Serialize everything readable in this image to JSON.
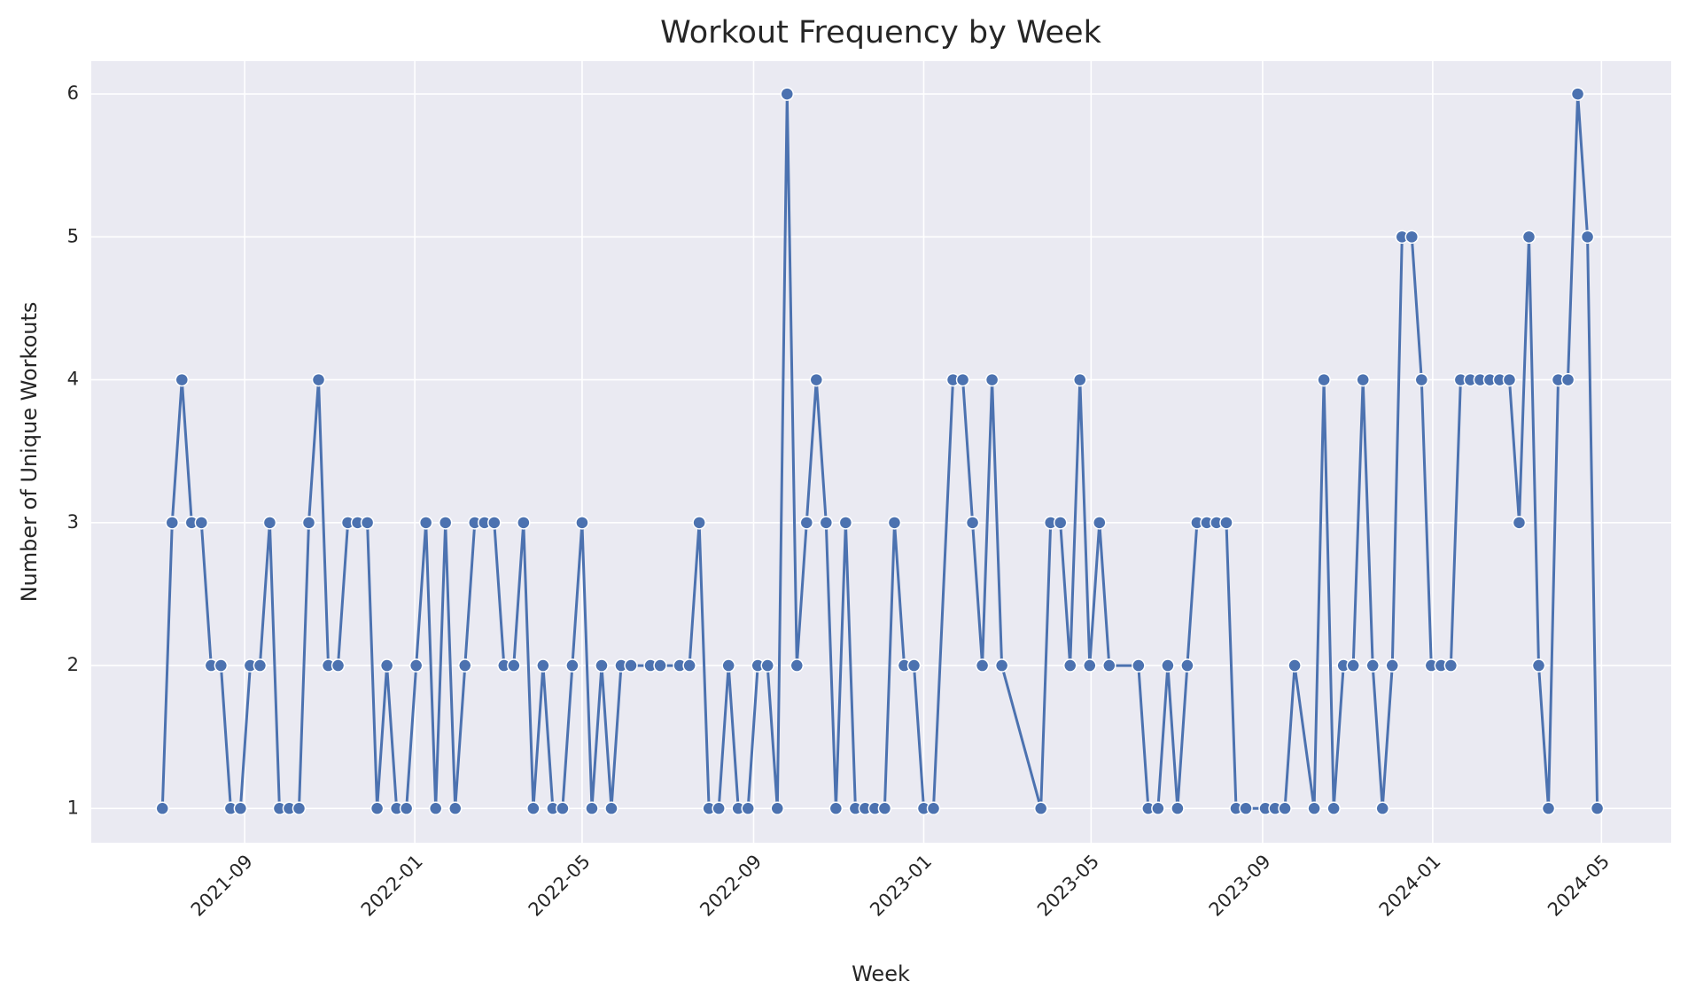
{
  "chart_data": {
    "type": "line",
    "title": "Workout Frequency by Week",
    "x_label": "Week",
    "y_label": "Number of Unique Workouts",
    "color": "#4c72b0",
    "grid": true,
    "xlim": [
      "2021-05-14",
      "2024-06-20"
    ],
    "ylim": [
      0.76,
      6.23
    ],
    "yticks": [
      1,
      2,
      3,
      4,
      5,
      6
    ],
    "xticks": [
      {
        "value": "2021-09-01",
        "label": "2021-09"
      },
      {
        "value": "2022-01-01",
        "label": "2022-01"
      },
      {
        "value": "2022-05-01",
        "label": "2022-05"
      },
      {
        "value": "2022-09-01",
        "label": "2022-09"
      },
      {
        "value": "2023-01-01",
        "label": "2023-01"
      },
      {
        "value": "2023-05-01",
        "label": "2023-05"
      },
      {
        "value": "2023-09-01",
        "label": "2023-09"
      },
      {
        "value": "2024-01-01",
        "label": "2024-01"
      },
      {
        "value": "2024-05-01",
        "label": "2024-05"
      }
    ],
    "x": [
      "2021-07-04",
      "2021-07-11",
      "2021-07-18",
      "2021-07-25",
      "2021-08-01",
      "2021-08-08",
      "2021-08-15",
      "2021-08-22",
      "2021-08-29",
      "2021-09-05",
      "2021-09-12",
      "2021-09-19",
      "2021-09-26",
      "2021-10-03",
      "2021-10-10",
      "2021-10-17",
      "2021-10-24",
      "2021-10-31",
      "2021-11-07",
      "2021-11-14",
      "2021-11-21",
      "2021-11-28",
      "2021-12-05",
      "2021-12-12",
      "2021-12-19",
      "2021-12-26",
      "2022-01-02",
      "2022-01-09",
      "2022-01-16",
      "2022-01-23",
      "2022-01-30",
      "2022-02-06",
      "2022-02-13",
      "2022-02-20",
      "2022-02-27",
      "2022-03-06",
      "2022-03-13",
      "2022-03-20",
      "2022-03-27",
      "2022-04-03",
      "2022-04-10",
      "2022-04-17",
      "2022-04-24",
      "2022-05-01",
      "2022-05-08",
      "2022-05-15",
      "2022-05-22",
      "2022-05-29",
      "2022-06-05",
      "2022-06-19",
      "2022-06-26",
      "2022-07-10",
      "2022-07-17",
      "2022-07-24",
      "2022-07-31",
      "2022-08-07",
      "2022-08-14",
      "2022-08-21",
      "2022-08-28",
      "2022-09-04",
      "2022-09-11",
      "2022-09-18",
      "2022-09-25",
      "2022-10-02",
      "2022-10-09",
      "2022-10-16",
      "2022-10-23",
      "2022-10-30",
      "2022-11-06",
      "2022-11-13",
      "2022-11-20",
      "2022-11-27",
      "2022-12-04",
      "2022-12-11",
      "2022-12-18",
      "2022-12-25",
      "2023-01-01",
      "2023-01-08",
      "2023-01-22",
      "2023-01-29",
      "2023-02-05",
      "2023-02-12",
      "2023-02-19",
      "2023-02-26",
      "2023-03-26",
      "2023-04-02",
      "2023-04-09",
      "2023-04-16",
      "2023-04-23",
      "2023-04-30",
      "2023-05-07",
      "2023-05-14",
      "2023-06-04",
      "2023-06-11",
      "2023-06-18",
      "2023-06-25",
      "2023-07-02",
      "2023-07-09",
      "2023-07-16",
      "2023-07-23",
      "2023-07-30",
      "2023-08-06",
      "2023-08-13",
      "2023-08-20",
      "2023-09-03",
      "2023-09-10",
      "2023-09-17",
      "2023-09-24",
      "2023-10-08",
      "2023-10-15",
      "2023-10-22",
      "2023-10-29",
      "2023-11-05",
      "2023-11-12",
      "2023-11-19",
      "2023-11-26",
      "2023-12-03",
      "2023-12-10",
      "2023-12-17",
      "2023-12-24",
      "2023-12-31",
      "2024-01-07",
      "2024-01-14",
      "2024-01-21",
      "2024-01-28",
      "2024-02-04",
      "2024-02-11",
      "2024-02-18",
      "2024-02-25",
      "2024-03-03",
      "2024-03-10",
      "2024-03-17",
      "2024-03-24",
      "2024-03-31",
      "2024-04-07",
      "2024-04-14",
      "2024-04-21",
      "2024-04-28"
    ],
    "values": [
      1,
      3,
      4,
      3,
      3,
      2,
      2,
      1,
      1,
      2,
      2,
      3,
      1,
      1,
      1,
      3,
      4,
      2,
      2,
      3,
      3,
      3,
      1,
      2,
      1,
      1,
      2,
      3,
      1,
      3,
      1,
      2,
      3,
      3,
      3,
      2,
      2,
      3,
      1,
      2,
      1,
      1,
      2,
      3,
      1,
      2,
      1,
      2,
      2,
      2,
      2,
      2,
      2,
      3,
      1,
      1,
      2,
      1,
      1,
      2,
      2,
      1,
      6,
      2,
      3,
      4,
      3,
      1,
      3,
      1,
      1,
      1,
      1,
      3,
      2,
      2,
      1,
      1,
      4,
      4,
      3,
      2,
      4,
      2,
      1,
      3,
      3,
      2,
      4,
      2,
      3,
      2,
      2,
      1,
      1,
      2,
      1,
      2,
      3,
      3,
      3,
      3,
      1,
      1,
      1,
      1,
      1,
      2,
      1,
      4,
      1,
      2,
      2,
      4,
      2,
      1,
      2,
      5,
      5,
      4,
      2,
      2,
      2,
      4,
      4,
      4,
      4,
      4,
      4,
      3,
      5,
      2,
      1,
      4,
      4,
      6,
      5,
      1
    ]
  }
}
